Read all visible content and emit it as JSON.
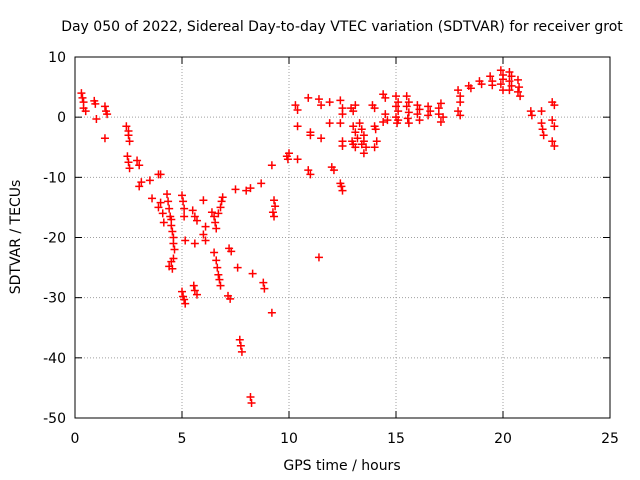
{
  "chart_data": {
    "type": "scatter",
    "title": "Day 050 of 2022, Sidereal Day-to-day VTEC variation (SDTVAR) for receiver grot",
    "xlabel": "GPS time / hours",
    "ylabel": "SDTVAR / TECUs",
    "xlim": [
      0,
      25
    ],
    "ylim": [
      -50,
      10
    ],
    "xticks": [
      "0",
      "5",
      "10",
      "15",
      "20",
      "25"
    ],
    "yticks": [
      "-50",
      "-40",
      "-30",
      "-20",
      "-10",
      "0",
      "10"
    ],
    "grid": true,
    "marker": "+",
    "color": "#ff0000",
    "series": [
      {
        "name": "SDTVAR",
        "points": [
          [
            0.3,
            4.0
          ],
          [
            0.35,
            3.2
          ],
          [
            0.4,
            2.5
          ],
          [
            0.4,
            1.5
          ],
          [
            0.5,
            1.0
          ],
          [
            0.9,
            2.7
          ],
          [
            0.95,
            2.2
          ],
          [
            1.0,
            -0.3
          ],
          [
            1.4,
            1.8
          ],
          [
            1.45,
            1.0
          ],
          [
            1.5,
            0.5
          ],
          [
            1.4,
            -3.5
          ],
          [
            2.4,
            -1.5
          ],
          [
            2.5,
            -2.3
          ],
          [
            2.5,
            -3.0
          ],
          [
            2.55,
            -4.0
          ],
          [
            2.45,
            -6.5
          ],
          [
            2.5,
            -7.5
          ],
          [
            2.55,
            -8.5
          ],
          [
            2.9,
            -7.2
          ],
          [
            3.0,
            -8.0
          ],
          [
            3.1,
            -10.8
          ],
          [
            3.0,
            -11.5
          ],
          [
            3.5,
            -10.5
          ],
          [
            3.6,
            -13.5
          ],
          [
            3.9,
            -9.5
          ],
          [
            4.0,
            -9.5
          ],
          [
            3.9,
            -15.0
          ],
          [
            4.0,
            -14.2
          ],
          [
            4.1,
            -16.0
          ],
          [
            4.15,
            -17.5
          ],
          [
            4.3,
            -12.8
          ],
          [
            4.35,
            -14.0
          ],
          [
            4.4,
            -15.2
          ],
          [
            4.45,
            -16.5
          ],
          [
            4.5,
            -17.0
          ],
          [
            4.5,
            -18.0
          ],
          [
            4.55,
            -19.0
          ],
          [
            4.6,
            -20.0
          ],
          [
            4.6,
            -21.0
          ],
          [
            4.65,
            -22.0
          ],
          [
            4.4,
            -24.8
          ],
          [
            4.5,
            -24.0
          ],
          [
            4.6,
            -23.5
          ],
          [
            4.55,
            -25.2
          ],
          [
            5.0,
            -13.0
          ],
          [
            5.05,
            -14.0
          ],
          [
            5.1,
            -15.2
          ],
          [
            5.1,
            -16.5
          ],
          [
            5.15,
            -20.5
          ],
          [
            5.0,
            -29.0
          ],
          [
            5.05,
            -29.8
          ],
          [
            5.1,
            -30.3
          ],
          [
            5.15,
            -31.0
          ],
          [
            5.5,
            -15.5
          ],
          [
            5.6,
            -16.5
          ],
          [
            5.7,
            -17.2
          ],
          [
            5.6,
            -21.0
          ],
          [
            5.55,
            -28.0
          ],
          [
            5.6,
            -28.8
          ],
          [
            5.7,
            -29.5
          ],
          [
            6.0,
            -13.8
          ],
          [
            6.1,
            -18.2
          ],
          [
            6.0,
            -19.5
          ],
          [
            6.1,
            -20.5
          ],
          [
            6.4,
            -15.8
          ],
          [
            6.5,
            -16.5
          ],
          [
            6.55,
            -17.5
          ],
          [
            6.6,
            -18.5
          ],
          [
            6.7,
            -16.0
          ],
          [
            6.8,
            -15.0
          ],
          [
            6.85,
            -14.0
          ],
          [
            6.9,
            -13.3
          ],
          [
            6.5,
            -22.5
          ],
          [
            6.6,
            -23.8
          ],
          [
            6.65,
            -25.0
          ],
          [
            6.7,
            -26.2
          ],
          [
            6.75,
            -27.0
          ],
          [
            6.8,
            -28.0
          ],
          [
            7.2,
            -21.8
          ],
          [
            7.3,
            -22.3
          ],
          [
            7.15,
            -29.7
          ],
          [
            7.25,
            -30.2
          ],
          [
            7.5,
            -12.0
          ],
          [
            7.6,
            -25.0
          ],
          [
            7.7,
            -37.0
          ],
          [
            7.75,
            -38.0
          ],
          [
            7.8,
            -39.0
          ],
          [
            8.0,
            -12.2
          ],
          [
            8.2,
            -11.8
          ],
          [
            8.3,
            -26.0
          ],
          [
            8.2,
            -46.5
          ],
          [
            8.25,
            -47.5
          ],
          [
            8.7,
            -11.0
          ],
          [
            8.8,
            -27.5
          ],
          [
            8.85,
            -28.5
          ],
          [
            9.2,
            -8.0
          ],
          [
            9.3,
            -13.8
          ],
          [
            9.35,
            -14.8
          ],
          [
            9.25,
            -15.8
          ],
          [
            9.3,
            -16.5
          ],
          [
            9.2,
            -32.5
          ],
          [
            9.9,
            -6.5
          ],
          [
            10.0,
            -6.0
          ],
          [
            9.95,
            -7.0
          ],
          [
            10.4,
            -7.0
          ],
          [
            10.3,
            2.0
          ],
          [
            10.4,
            1.2
          ],
          [
            10.4,
            -1.5
          ],
          [
            10.9,
            3.2
          ],
          [
            11.0,
            -2.5
          ],
          [
            11.0,
            -3.0
          ],
          [
            10.9,
            -8.8
          ],
          [
            11.0,
            -9.5
          ],
          [
            11.4,
            3.0
          ],
          [
            11.5,
            2.0
          ],
          [
            11.5,
            -3.5
          ],
          [
            11.4,
            -23.3
          ],
          [
            11.9,
            2.5
          ],
          [
            11.9,
            -1.0
          ],
          [
            12.0,
            -8.3
          ],
          [
            12.1,
            -8.8
          ],
          [
            12.4,
            2.8
          ],
          [
            12.5,
            1.5
          ],
          [
            12.5,
            0.5
          ],
          [
            12.4,
            -1.0
          ],
          [
            12.5,
            -4.0
          ],
          [
            12.5,
            -4.8
          ],
          [
            12.4,
            -11.0
          ],
          [
            12.45,
            -11.5
          ],
          [
            12.5,
            -12.2
          ],
          [
            12.9,
            1.5
          ],
          [
            13.0,
            1.0
          ],
          [
            13.1,
            2.0
          ],
          [
            13.0,
            -1.5
          ],
          [
            13.1,
            -2.5
          ],
          [
            13.2,
            -3.5
          ],
          [
            12.95,
            -4.0
          ],
          [
            13.0,
            -4.5
          ],
          [
            13.1,
            -5.0
          ],
          [
            13.3,
            -1.0
          ],
          [
            13.4,
            -2.0
          ],
          [
            13.5,
            -3.0
          ],
          [
            13.5,
            -4.0
          ],
          [
            13.6,
            -5.0
          ],
          [
            13.5,
            -6.0
          ],
          [
            13.4,
            -4.5
          ],
          [
            13.9,
            2.0
          ],
          [
            14.0,
            1.5
          ],
          [
            14.0,
            -1.5
          ],
          [
            14.05,
            -2.0
          ],
          [
            14.1,
            -4.0
          ],
          [
            14.0,
            -5.0
          ],
          [
            14.4,
            3.8
          ],
          [
            14.5,
            3.2
          ],
          [
            14.5,
            0.5
          ],
          [
            14.6,
            -0.5
          ],
          [
            14.4,
            -0.8
          ],
          [
            15.0,
            3.5
          ],
          [
            15.1,
            2.5
          ],
          [
            15.0,
            1.8
          ],
          [
            15.1,
            1.0
          ],
          [
            15.0,
            0.0
          ],
          [
            15.1,
            -0.5
          ],
          [
            15.05,
            -1.0
          ],
          [
            15.5,
            3.5
          ],
          [
            15.6,
            2.5
          ],
          [
            15.5,
            1.8
          ],
          [
            15.6,
            0.8
          ],
          [
            15.55,
            -0.2
          ],
          [
            15.6,
            -1.0
          ],
          [
            16.0,
            2.0
          ],
          [
            16.1,
            1.3
          ],
          [
            16.0,
            0.5
          ],
          [
            16.1,
            -0.5
          ],
          [
            16.5,
            1.8
          ],
          [
            16.6,
            1.0
          ],
          [
            16.5,
            0.3
          ],
          [
            17.0,
            1.5
          ],
          [
            17.1,
            2.3
          ],
          [
            17.0,
            0.5
          ],
          [
            17.2,
            0.0
          ],
          [
            17.1,
            -0.8
          ],
          [
            17.9,
            4.5
          ],
          [
            18.0,
            3.5
          ],
          [
            18.0,
            2.5
          ],
          [
            17.9,
            1.0
          ],
          [
            18.0,
            0.3
          ],
          [
            18.4,
            5.2
          ],
          [
            18.5,
            4.8
          ],
          [
            18.9,
            6.0
          ],
          [
            19.0,
            5.5
          ],
          [
            19.4,
            6.8
          ],
          [
            19.5,
            6.0
          ],
          [
            19.5,
            5.3
          ],
          [
            19.9,
            7.8
          ],
          [
            20.0,
            7.0
          ],
          [
            20.0,
            6.3
          ],
          [
            19.9,
            5.5
          ],
          [
            20.0,
            4.5
          ],
          [
            20.3,
            7.5
          ],
          [
            20.4,
            6.8
          ],
          [
            20.3,
            6.0
          ],
          [
            20.4,
            5.2
          ],
          [
            20.3,
            4.5
          ],
          [
            20.7,
            6.2
          ],
          [
            20.75,
            5.0
          ],
          [
            20.7,
            4.2
          ],
          [
            20.8,
            3.5
          ],
          [
            21.3,
            1.0
          ],
          [
            21.35,
            0.3
          ],
          [
            21.8,
            1.0
          ],
          [
            21.8,
            -1.0
          ],
          [
            21.85,
            -2.0
          ],
          [
            21.9,
            -3.0
          ],
          [
            22.3,
            2.5
          ],
          [
            22.4,
            2.0
          ],
          [
            22.3,
            -0.5
          ],
          [
            22.4,
            -1.5
          ],
          [
            22.3,
            -4.0
          ],
          [
            22.4,
            -4.8
          ]
        ]
      }
    ]
  }
}
